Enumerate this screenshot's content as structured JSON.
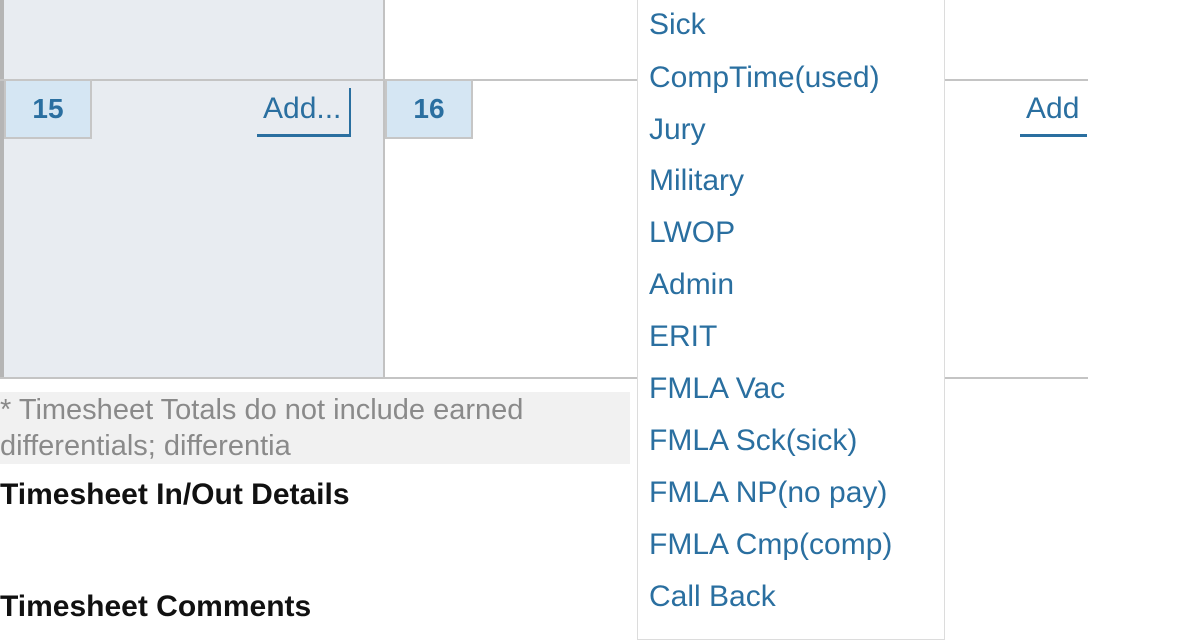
{
  "calendar": {
    "days": [
      {
        "number": "15",
        "add_label": "Add..."
      },
      {
        "number": "16",
        "add_label": "Add"
      }
    ]
  },
  "note": "* Timesheet Totals do not include earned differentials; differentia",
  "sections": {
    "in_out_details": "Timesheet In/Out Details",
    "comments": "Timesheet Comments"
  },
  "dropdown": {
    "items": [
      "Sick",
      "CompTime(used)",
      "Jury",
      "Military",
      "LWOP",
      "Admin",
      "ERIT",
      "FMLA Vac",
      "FMLA Sck(sick)",
      "FMLA NP(no pay)",
      "FMLA Cmp(comp)",
      "Call Back"
    ]
  },
  "colors": {
    "link": "#2a6fa0",
    "weekend_cell": "#e8ecf1",
    "day_badge": "#d5e6f3"
  }
}
